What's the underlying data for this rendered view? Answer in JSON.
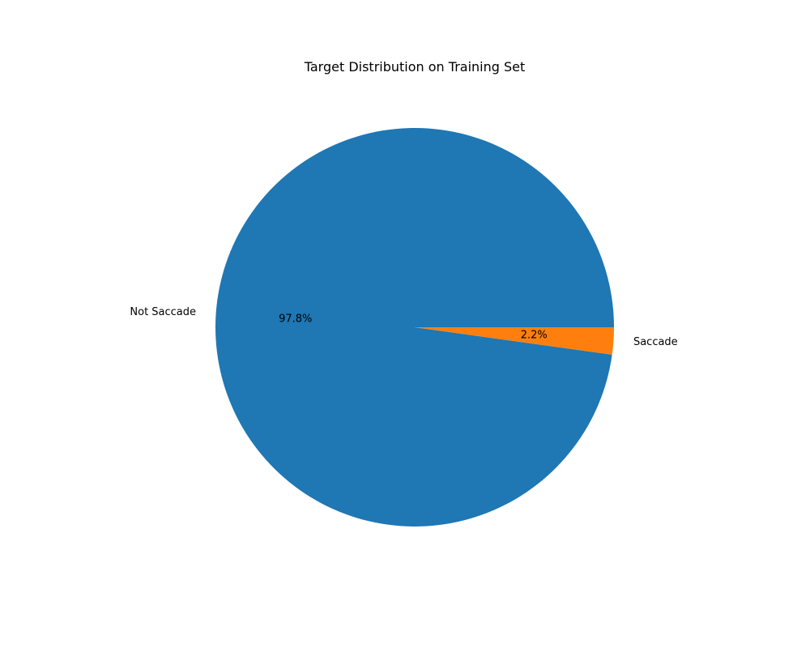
{
  "chart_data": {
    "type": "pie",
    "title": "Target Distribution on Training Set",
    "start_angle_deg": 0,
    "direction": "counterclockwise",
    "slices": [
      {
        "label": "Not Saccade",
        "value": 97.8,
        "pct_label": "97.8%",
        "color": "#1f77b4"
      },
      {
        "label": "Saccade",
        "value": 2.2,
        "pct_label": "2.2%",
        "color": "#ff7f0e"
      }
    ]
  }
}
